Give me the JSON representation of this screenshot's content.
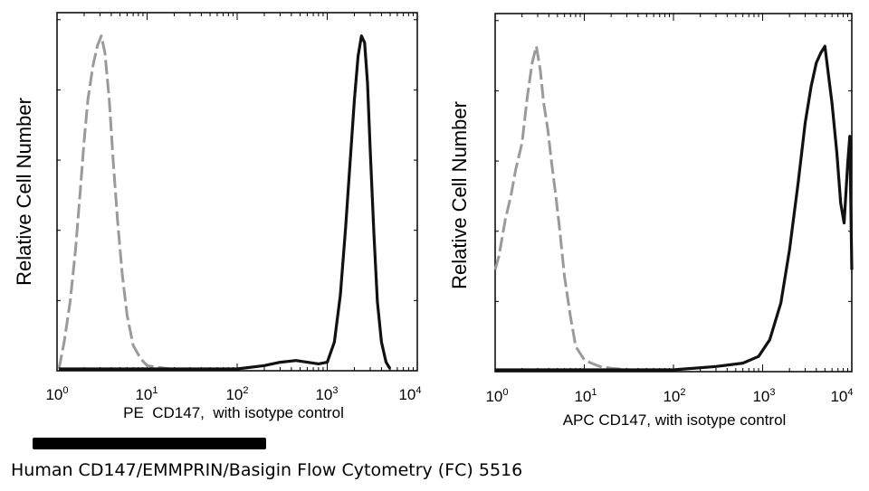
{
  "chart_data": [
    {
      "type": "line",
      "xscale": "log",
      "xlim": [
        1,
        10000
      ],
      "x_ticks": [
        1,
        10,
        100,
        1000,
        10000
      ],
      "ylabel": "Relative Cell Number",
      "xlabel": "PE  CD147,  with isotype control",
      "series": [
        {
          "style": "dashed",
          "color": "#9a9a9a",
          "x": [
            1.05,
            1.2,
            1.4,
            1.6,
            1.8,
            2.0,
            2.2,
            2.5,
            2.8,
            3.1,
            3.4,
            3.8,
            4.2,
            4.7,
            5.3,
            6.0,
            7.0,
            8.5,
            10,
            13,
            18,
            25,
            35
          ],
          "y": [
            0.0,
            0.08,
            0.2,
            0.35,
            0.52,
            0.68,
            0.8,
            0.9,
            0.96,
            0.99,
            0.94,
            0.8,
            0.62,
            0.44,
            0.28,
            0.16,
            0.07,
            0.03,
            0.01,
            0.005,
            0.0,
            0.0,
            0.0
          ]
        },
        {
          "style": "solid",
          "color": "#111111",
          "x": [
            1.05,
            10,
            100,
            200,
            300,
            450,
            600,
            800,
            1000,
            1200,
            1400,
            1600,
            1800,
            2000,
            2200,
            2400,
            2600,
            2800,
            3000,
            3300,
            3600,
            4000,
            4500,
            5000
          ],
          "y": [
            0.0,
            0.0,
            0.0,
            0.01,
            0.02,
            0.025,
            0.02,
            0.015,
            0.02,
            0.08,
            0.22,
            0.42,
            0.62,
            0.8,
            0.93,
            0.99,
            0.97,
            0.85,
            0.65,
            0.4,
            0.2,
            0.08,
            0.02,
            0.0
          ]
        }
      ]
    },
    {
      "type": "line",
      "xscale": "log",
      "xlim": [
        1,
        10000
      ],
      "x_ticks": [
        1,
        10,
        100,
        1000,
        10000
      ],
      "ylabel": "Relative Cell Number",
      "xlabel": "APC CD147, with isotype control",
      "series": [
        {
          "style": "dashed",
          "color": "#9a9a9a",
          "x": [
            1.0,
            1.1,
            1.3,
            1.5,
            1.7,
            2.0,
            2.3,
            2.6,
            2.9,
            3.2,
            3.5,
            3.9,
            4.3,
            4.8,
            5.3,
            6.0,
            7.0,
            8.0,
            10,
            12,
            15,
            20,
            30,
            50,
            80
          ],
          "y": [
            0.3,
            0.34,
            0.45,
            0.52,
            0.6,
            0.68,
            0.82,
            0.92,
            0.97,
            0.9,
            0.8,
            0.72,
            0.62,
            0.52,
            0.42,
            0.28,
            0.16,
            0.07,
            0.03,
            0.02,
            0.01,
            0.005,
            0.0,
            0.0,
            0.0
          ]
        },
        {
          "style": "solid",
          "color": "#111111",
          "x": [
            1.0,
            100,
            300,
            600,
            900,
            1200,
            1600,
            2000,
            2500,
            3000,
            3500,
            4000,
            4500,
            5000,
            5500,
            6000,
            6800,
            7500,
            8200,
            9000,
            9500,
            10000
          ],
          "y": [
            0.0,
            0.0,
            0.01,
            0.02,
            0.04,
            0.09,
            0.2,
            0.36,
            0.56,
            0.74,
            0.85,
            0.92,
            0.95,
            0.97,
            0.88,
            0.8,
            0.65,
            0.5,
            0.44,
            0.62,
            0.7,
            0.3
          ]
        }
      ]
    }
  ],
  "caption": "Human CD147/EMMPRIN/Basigin Flow Cytometry (FC) 5516",
  "copyright_redacted": true
}
